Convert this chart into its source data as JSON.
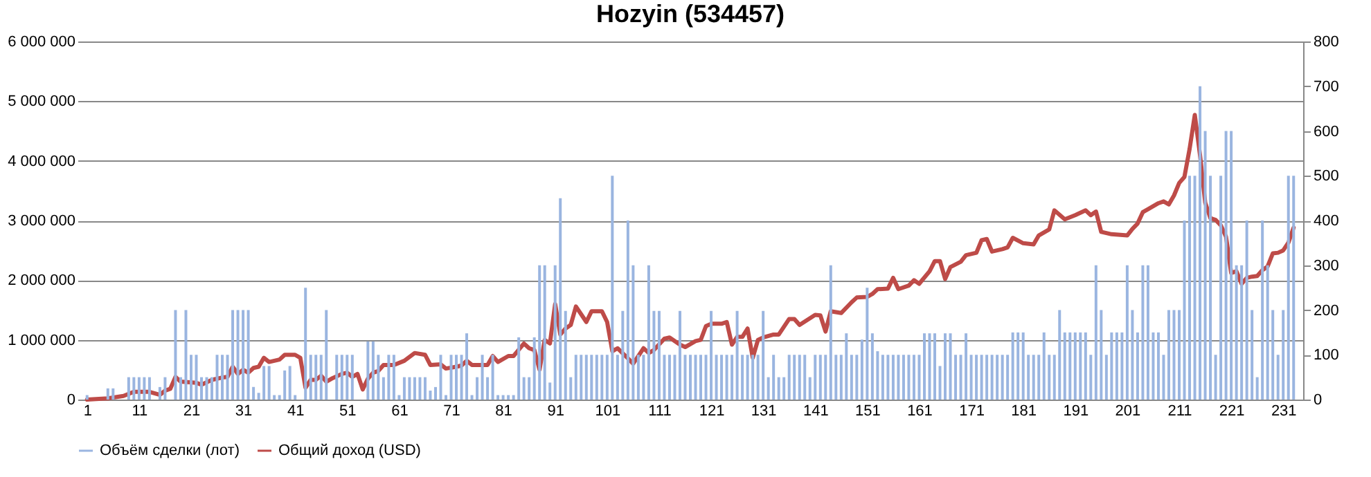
{
  "chart_data": {
    "type": "bar",
    "title": "Hozyin (534457)",
    "x": [
      1,
      2,
      3,
      4,
      5,
      6,
      7,
      8,
      9,
      10,
      11,
      12,
      13,
      14,
      15,
      16,
      17,
      18,
      19,
      20,
      21,
      22,
      23,
      24,
      25,
      26,
      27,
      28,
      29,
      30,
      31,
      32,
      33,
      34,
      35,
      36,
      37,
      38,
      39,
      40,
      41,
      42,
      43,
      44,
      45,
      46,
      47,
      48,
      49,
      50,
      51,
      52,
      53,
      54,
      55,
      56,
      57,
      58,
      59,
      60,
      61,
      62,
      63,
      64,
      65,
      66,
      67,
      68,
      69,
      70,
      71,
      72,
      73,
      74,
      75,
      76,
      77,
      78,
      79,
      80,
      81,
      82,
      83,
      84,
      85,
      86,
      87,
      88,
      89,
      90,
      91,
      92,
      93,
      94,
      95,
      96,
      97,
      98,
      99,
      100,
      101,
      102,
      103,
      104,
      105,
      106,
      107,
      108,
      109,
      110,
      111,
      112,
      113,
      114,
      115,
      116,
      117,
      118,
      119,
      120,
      121,
      122,
      123,
      124,
      125,
      126,
      127,
      128,
      129,
      130,
      131,
      132,
      133,
      134,
      135,
      136,
      137,
      138,
      139,
      140,
      141,
      142,
      143,
      144,
      145,
      146,
      147,
      148,
      149,
      150,
      151,
      152,
      153,
      154,
      155,
      156,
      157,
      158,
      159,
      160,
      161,
      162,
      163,
      164,
      165,
      166,
      167,
      168,
      169,
      170,
      171,
      172,
      173,
      174,
      175,
      176,
      177,
      178,
      179,
      180,
      181,
      182,
      183,
      184,
      185,
      186,
      187,
      188,
      189,
      190,
      191,
      192,
      193,
      194,
      195,
      196,
      197,
      198,
      199,
      200,
      201,
      202,
      203,
      204,
      205,
      206,
      207,
      208,
      209,
      210,
      211,
      212,
      213,
      214,
      215,
      216,
      217,
      218,
      219,
      220,
      221,
      222,
      223,
      224,
      225,
      226,
      227,
      228,
      229,
      230,
      231,
      232,
      233
    ],
    "xlim": [
      0.5,
      233.5
    ],
    "xticks": [
      1,
      11,
      21,
      31,
      41,
      51,
      61,
      71,
      81,
      91,
      101,
      111,
      121,
      131,
      141,
      151,
      161,
      171,
      181,
      191,
      201,
      211,
      221,
      231
    ],
    "ylim": [
      0,
      6000000
    ],
    "yticks": [
      {
        "value": 0,
        "label": "0"
      },
      {
        "value": 1000000,
        "label": "1 000 000"
      },
      {
        "value": 2000000,
        "label": "2 000 000"
      },
      {
        "value": 3000000,
        "label": "3 000 000"
      },
      {
        "value": 4000000,
        "label": "4 000 000"
      },
      {
        "value": 5000000,
        "label": "5 000 000"
      },
      {
        "value": 6000000,
        "label": "6 000 000"
      }
    ],
    "y2lim": [
      0,
      800
    ],
    "y2ticks": [
      0,
      100,
      200,
      300,
      400,
      500,
      600,
      700,
      800
    ],
    "grid": "y",
    "legend": "bottom",
    "series": [
      {
        "name": "Объём сделки (лот)",
        "axis": "y2",
        "color": "#9ab5e0",
        "values": [
          10,
          0,
          0,
          0,
          25,
          25,
          0,
          0,
          50,
          50,
          50,
          50,
          50,
          0,
          28,
          50,
          0,
          200,
          50,
          200,
          100,
          100,
          50,
          50,
          50,
          100,
          100,
          100,
          200,
          200,
          200,
          200,
          28,
          15,
          75,
          75,
          10,
          10,
          65,
          75,
          10,
          0,
          250,
          100,
          100,
          100,
          200,
          0,
          100,
          100,
          100,
          100,
          0,
          0,
          130,
          130,
          100,
          50,
          100,
          100,
          10,
          50,
          50,
          50,
          50,
          50,
          20,
          28,
          100,
          10,
          100,
          100,
          100,
          148,
          10,
          50,
          100,
          50,
          100,
          10,
          10,
          10,
          10,
          139,
          50,
          50,
          139,
          300,
          300,
          38,
          300,
          450,
          198,
          50,
          100,
          100,
          100,
          100,
          100,
          100,
          100,
          500,
          100,
          198,
          400,
          300,
          100,
          100,
          300,
          198,
          198,
          100,
          100,
          100,
          198,
          100,
          100,
          100,
          100,
          100,
          198,
          100,
          100,
          100,
          100,
          198,
          100,
          100,
          100,
          100,
          198,
          50,
          100,
          50,
          50,
          100,
          100,
          100,
          100,
          50,
          100,
          100,
          100,
          300,
          100,
          100,
          148,
          100,
          100,
          134,
          250,
          148,
          108,
          100,
          100,
          100,
          100,
          100,
          100,
          100,
          100,
          148,
          148,
          148,
          75,
          148,
          148,
          100,
          100,
          148,
          100,
          100,
          100,
          100,
          100,
          100,
          100,
          100,
          150,
          150,
          150,
          100,
          100,
          100,
          150,
          100,
          100,
          200,
          150,
          150,
          150,
          150,
          150,
          100,
          300,
          200,
          100,
          150,
          150,
          150,
          300,
          200,
          150,
          300,
          300,
          150,
          150,
          100,
          200,
          200,
          200,
          400,
          500,
          500,
          700,
          600,
          500,
          100,
          500,
          600,
          600,
          300,
          300,
          400,
          200,
          50,
          400,
          300,
          200,
          100,
          200,
          500,
          500
        ]
      },
      {
        "name": "Общий доход (USD)",
        "type": "line",
        "color": "#be4b48",
        "x": [
          1,
          5,
          8,
          10,
          13,
          15,
          16,
          17,
          18,
          19,
          22,
          23,
          25,
          27,
          28,
          29,
          30,
          31,
          32,
          33,
          34,
          35,
          36,
          38,
          39,
          41,
          42,
          43,
          44,
          45,
          46,
          47,
          48,
          50,
          51,
          52,
          53,
          54,
          55,
          56,
          57,
          58,
          60,
          62,
          64,
          66,
          67,
          69,
          70,
          72,
          73,
          74,
          75,
          77,
          78,
          79,
          80,
          82,
          83,
          85,
          86,
          87,
          88,
          89,
          90,
          91,
          92,
          93,
          94,
          95,
          97,
          98,
          100,
          101,
          102,
          103,
          105,
          106,
          108,
          109,
          110,
          112,
          113,
          115,
          116,
          118,
          119,
          120,
          121,
          123,
          124,
          125,
          126,
          127,
          128,
          129,
          130,
          131,
          133,
          134,
          136,
          137,
          138,
          141,
          142,
          143,
          144,
          146,
          148,
          149,
          151,
          152,
          153,
          155,
          156,
          157,
          159,
          160,
          161,
          163,
          164,
          165,
          166,
          167,
          169,
          170,
          172,
          173,
          174,
          175,
          177,
          178,
          179,
          181,
          183,
          184,
          186,
          187,
          189,
          191,
          193,
          194,
          195,
          196,
          198,
          201,
          202,
          203,
          204,
          205,
          207,
          208,
          209,
          210,
          211,
          212,
          213,
          214,
          215,
          216,
          217,
          218,
          219,
          220,
          221,
          222,
          223,
          224,
          225,
          226,
          227,
          228,
          229,
          230,
          231,
          232,
          233
        ],
        "values": [
          0,
          20000,
          60000,
          130000,
          130000,
          80000,
          150000,
          180000,
          380000,
          300000,
          280000,
          250000,
          330000,
          370000,
          380000,
          550000,
          430000,
          500000,
          450000,
          530000,
          550000,
          700000,
          630000,
          670000,
          750000,
          750000,
          700000,
          200000,
          330000,
          330000,
          400000,
          300000,
          350000,
          430000,
          450000,
          380000,
          430000,
          170000,
          350000,
          450000,
          480000,
          580000,
          580000,
          650000,
          780000,
          750000,
          580000,
          590000,
          520000,
          550000,
          570000,
          650000,
          580000,
          580000,
          580000,
          730000,
          630000,
          730000,
          730000,
          940000,
          860000,
          830000,
          500000,
          1000000,
          940000,
          1600000,
          1090000,
          1190000,
          1250000,
          1560000,
          1300000,
          1480000,
          1480000,
          1300000,
          810000,
          860000,
          690000,
          600000,
          860000,
          780000,
          830000,
          1020000,
          1040000,
          920000,
          880000,
          980000,
          1000000,
          1230000,
          1270000,
          1270000,
          1300000,
          920000,
          1050000,
          1050000,
          1190000,
          700000,
          1000000,
          1040000,
          1090000,
          1090000,
          1350000,
          1350000,
          1250000,
          1420000,
          1410000,
          1140000,
          1480000,
          1450000,
          1630000,
          1710000,
          1720000,
          1770000,
          1850000,
          1860000,
          2040000,
          1850000,
          1910000,
          2000000,
          1940000,
          2150000,
          2320000,
          2320000,
          2020000,
          2220000,
          2310000,
          2420000,
          2460000,
          2670000,
          2690000,
          2480000,
          2520000,
          2550000,
          2710000,
          2620000,
          2600000,
          2750000,
          2850000,
          3170000,
          3020000,
          3090000,
          3170000,
          3090000,
          3150000,
          2810000,
          2770000,
          2750000,
          2860000,
          2950000,
          3140000,
          3190000,
          3290000,
          3320000,
          3270000,
          3420000,
          3630000,
          3730000,
          4200000,
          4770000,
          4100000,
          3300000,
          3040000,
          3010000,
          2920000,
          2730000,
          2120000,
          2150000,
          1940000,
          2040000,
          2060000,
          2070000,
          2170000,
          2230000,
          2450000,
          2460000,
          2500000,
          2630000,
          2880000
        ]
      }
    ]
  }
}
